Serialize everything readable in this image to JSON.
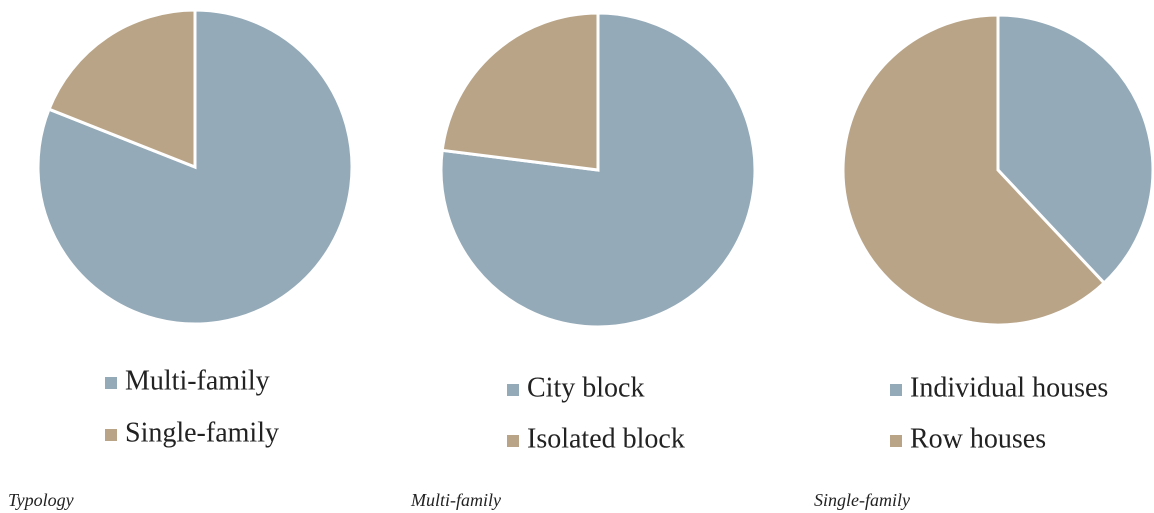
{
  "chart_data": [
    {
      "type": "pie",
      "title": "Typology",
      "categories": [
        "Multi-family",
        "Single-family"
      ],
      "values": [
        81,
        19
      ],
      "colors": [
        "#94aab8",
        "#b9a487"
      ]
    },
    {
      "type": "pie",
      "title": "Multi-family",
      "categories": [
        "City block",
        "Isolated block"
      ],
      "values": [
        77,
        23
      ],
      "colors": [
        "#94aab8",
        "#b9a487"
      ]
    },
    {
      "type": "pie",
      "title": "Single-family",
      "categories": [
        "Individual houses",
        "Row houses"
      ],
      "values": [
        38,
        62
      ],
      "colors": [
        "#94aab8",
        "#b9a487"
      ]
    }
  ]
}
